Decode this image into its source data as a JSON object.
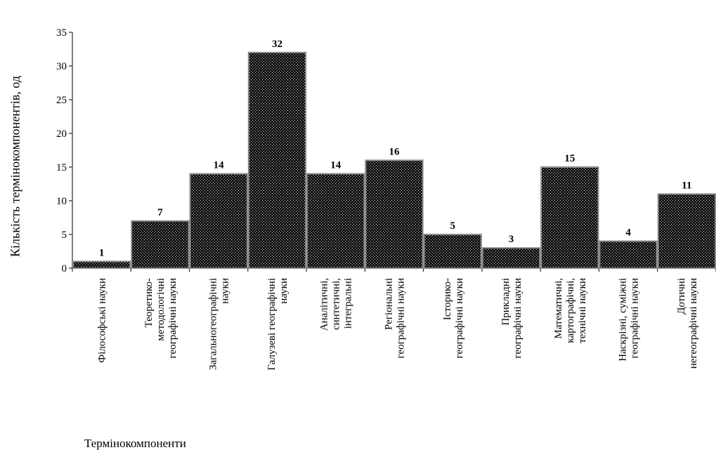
{
  "chart_data": {
    "type": "bar",
    "ylabel": "Кількість термінокомпонентів, од",
    "xlabel": "Термінокомпоненти",
    "ylim": [
      0,
      35
    ],
    "yticks": [
      0,
      5,
      10,
      15,
      20,
      25,
      30,
      35
    ],
    "grid": false,
    "legend": "none",
    "categories": [
      "Філософські науки",
      "Теоретико-методологічні географічні науки",
      "Загальногеографічні науки",
      "Галузеві географічні науки",
      "Аналітичні, синтетичні, інтегральні",
      "Регіональні географічні науки",
      "Історико-географічні науки",
      "Прикладні географічні науки",
      "Математичні, картографічні, технічні науки",
      "Наскрізні, суміжні географічні науки",
      "Дотичні негеографічні науки"
    ],
    "category_lines": [
      [
        "Філософські науки"
      ],
      [
        "Теоретико-",
        "методологічні",
        "географічні науки"
      ],
      [
        "Загальногеографічні",
        "науки"
      ],
      [
        "Галузеві географічні",
        "науки"
      ],
      [
        "Аналітичні,",
        "синтетичні,",
        "інтегральні"
      ],
      [
        "Регіональні",
        "географічні науки"
      ],
      [
        "Історико-",
        "географічні науки"
      ],
      [
        "Прикладні",
        "географічні науки"
      ],
      [
        "Математичні,",
        "картографічні,",
        "технічні науки"
      ],
      [
        "Наскрізні, суміжні",
        "географічні науки"
      ],
      [
        "Дотичні",
        "негеографічні науки"
      ]
    ],
    "values": [
      1,
      7,
      14,
      32,
      14,
      16,
      5,
      3,
      15,
      4,
      11
    ],
    "colors": {
      "bar_fill": "#111111",
      "bar_stroke": "#8a8a8a",
      "dot": "#cfcfcf",
      "axis": "#000000"
    }
  }
}
